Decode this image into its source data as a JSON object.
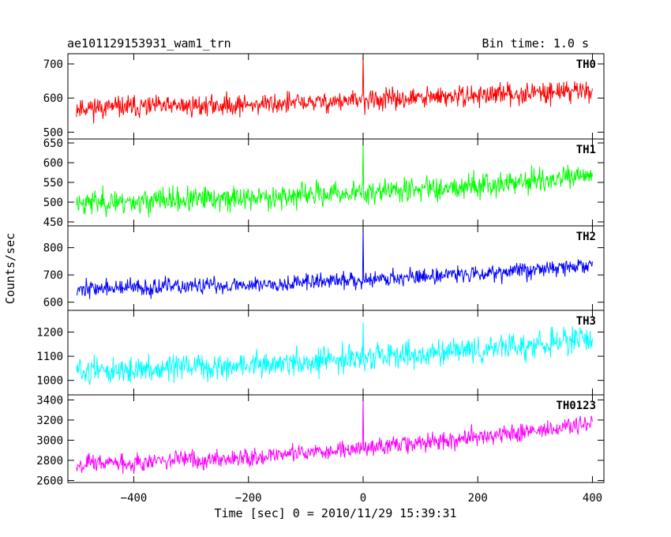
{
  "chart_data": {
    "type": "line",
    "title": "ae101129153931_wam1_trn",
    "subtitle": "Bin time: 1.0 s",
    "xlabel": "Time [sec] 0 = 2010/11/29 15:39:31",
    "ylabel": "Counts/sec",
    "xlim": [
      -515,
      420
    ],
    "x_ticks": [
      -400,
      -200,
      0,
      200,
      400
    ],
    "x_tick_labels": [
      "−400",
      "−200",
      "0",
      "200",
      "400"
    ],
    "x_range": [
      -500,
      400
    ],
    "grid": false,
    "spike": {
      "x": 0
    },
    "series": [
      {
        "name": "TH0",
        "color": "#ff0000",
        "ylim": [
          480,
          730
        ],
        "yticks": [
          500,
          600,
          700
        ],
        "start_level": 572,
        "end_level": 625,
        "noise": 22,
        "spike_top": 730,
        "seed": 11
      },
      {
        "name": "TH1",
        "color": "#00ff00",
        "ylim": [
          440,
          660
        ],
        "yticks": [
          450,
          500,
          550,
          600,
          650
        ],
        "start_level": 500,
        "end_level": 565,
        "noise": 22,
        "spike_top": 660,
        "seed": 23
      },
      {
        "name": "TH2",
        "color": "#0000ff",
        "ylim": [
          570,
          880
        ],
        "yticks": [
          600,
          700,
          800
        ],
        "start_level": 650,
        "end_level": 735,
        "noise": 22,
        "spike_top": 880,
        "seed": 37
      },
      {
        "name": "TH3",
        "color": "#00ffff",
        "ylim": [
          940,
          1290
        ],
        "yticks": [
          1000,
          1100,
          1200
        ],
        "start_level": 1040,
        "end_level": 1170,
        "noise": 38,
        "spike_top": 1240,
        "seed": 51
      },
      {
        "name": "TH0123",
        "color": "#ff00ff",
        "ylim": [
          2580,
          3450
        ],
        "yticks": [
          2600,
          2800,
          3000,
          3200,
          3400
        ],
        "start_level": 2770,
        "end_level": 3160,
        "noise": 65,
        "spike_top": 3450,
        "seed": 67
      }
    ]
  }
}
